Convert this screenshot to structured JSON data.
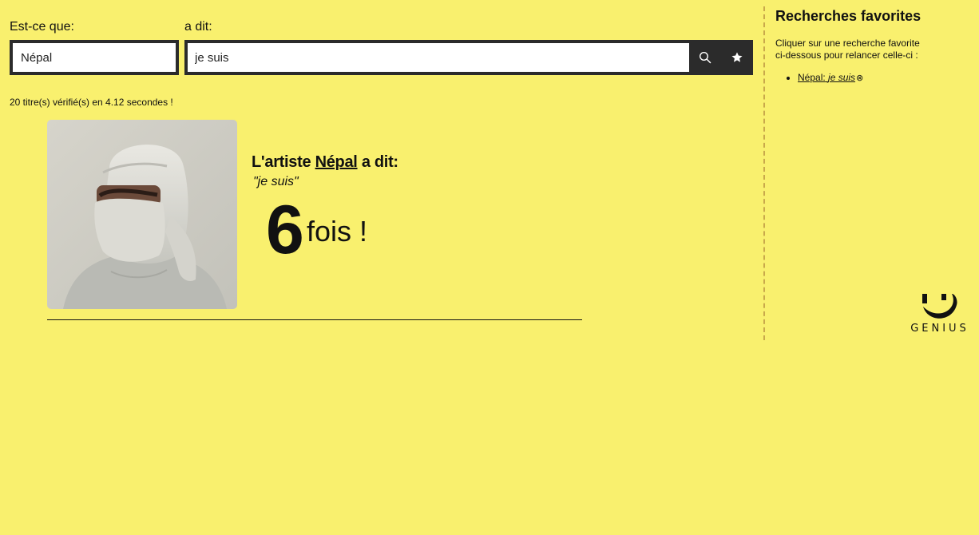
{
  "form": {
    "artist_label": "Est-ce que:",
    "said_label": "a dit:",
    "artist_value": "Népal",
    "phrase_value": "je suis"
  },
  "icons": {
    "search": "search-icon",
    "favorite": "star-icon"
  },
  "status": {
    "text": "20 titre(s) vérifié(s) en 4.12 secondes !"
  },
  "result": {
    "title_prefix": "L'artiste",
    "artist": "Népal",
    "title_suffix": "a dit:",
    "quote": "\"je suis\"",
    "count": "6",
    "count_suffix": "fois !"
  },
  "sidebar": {
    "title": "Recherches favorites",
    "help_line1": "Cliquer sur une recherche favorite",
    "help_line2": "ci-dessous pour relancer celle-ci :",
    "favorites": [
      {
        "artist": "Népal:",
        "phrase": "je suis",
        "remove_glyph": "⊗"
      }
    ]
  },
  "brand": {
    "logo_text": "GENIUS"
  },
  "colors": {
    "background": "#f9f06e",
    "dark": "#2b2b2b",
    "divider": "#c9a94b"
  }
}
